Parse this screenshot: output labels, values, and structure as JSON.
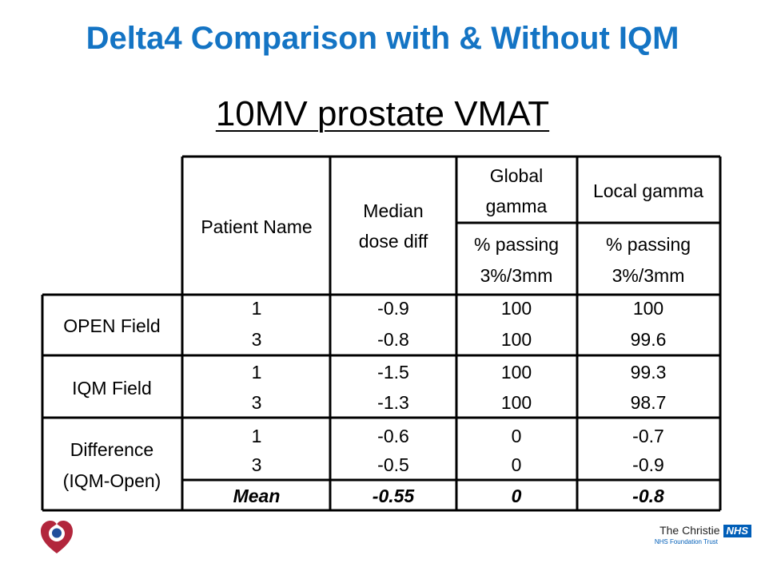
{
  "slide": {
    "title": "Delta4 Comparison with & Without IQM",
    "subtitle": "10MV prostate VMAT"
  },
  "table": {
    "headers": {
      "patient_name": "Patient Name",
      "median_line1": "Median",
      "median_line2": "dose diff",
      "global_line1": "Global",
      "global_line2": "gamma",
      "local": "Local gamma",
      "passing": "% passing",
      "criteria": "3%/3mm"
    },
    "groups": [
      {
        "label_line1": "OPEN Field",
        "label_line2": "",
        "rows": [
          {
            "patient": "1",
            "median": "-0.9",
            "global": "100",
            "local": "100"
          },
          {
            "patient": "3",
            "median": "-0.8",
            "global": "100",
            "local": "99.6"
          }
        ]
      },
      {
        "label_line1": "IQM Field",
        "label_line2": "",
        "rows": [
          {
            "patient": "1",
            "median": "-1.5",
            "global": "100",
            "local": "99.3"
          },
          {
            "patient": "3",
            "median": "-1.3",
            "global": "100",
            "local": "98.7"
          }
        ]
      },
      {
        "label_line1": "Difference",
        "label_line2": "(IQM-Open)",
        "rows": [
          {
            "patient": "1",
            "median": "-0.6",
            "global": "0",
            "local": "-0.7"
          },
          {
            "patient": "3",
            "median": "-0.5",
            "global": "0",
            "local": "-0.9"
          }
        ]
      }
    ],
    "mean": {
      "label": "Mean",
      "median": "-0.55",
      "global": "0",
      "local": "-0.8"
    }
  },
  "footer": {
    "org_name": "The Christie",
    "nhs_badge": "NHS",
    "trust_line": "NHS Foundation Trust",
    "heart_color": "#b2263c",
    "nhs_color": "#005eb8",
    "title_color": "#1474c4"
  }
}
